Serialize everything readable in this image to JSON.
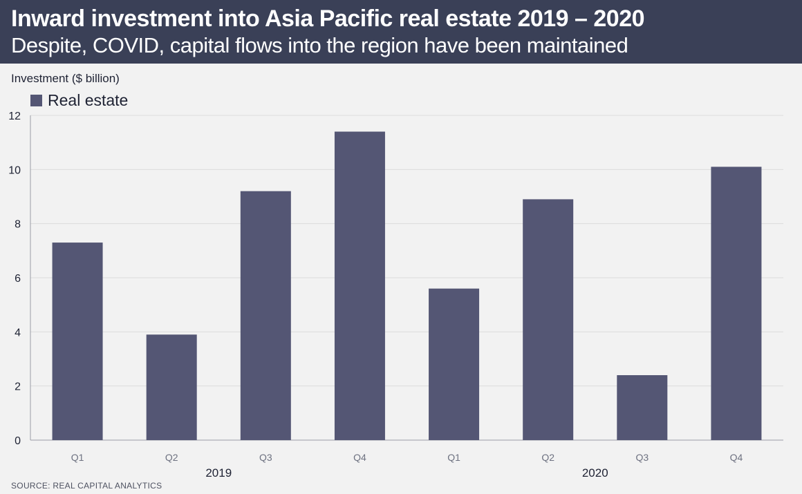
{
  "header": {
    "title": "Inward investment into Asia Pacific real estate 2019 – 2020",
    "subtitle": "Despite, COVID, capital flows into the region have been maintained"
  },
  "source": "SOURCE: REAL CAPITAL ANALYTICS",
  "chart_data": {
    "type": "bar",
    "title": "Inward investment into Asia Pacific real estate 2019 – 2020",
    "subtitle": "Despite, COVID, capital flows into the region have been maintained",
    "ylabel": "Investment ($ billion)",
    "xlabel": "",
    "ylim": [
      0,
      12
    ],
    "yticks": [
      0,
      2,
      4,
      6,
      8,
      10,
      12
    ],
    "grid": true,
    "legend": {
      "position": "top-left",
      "entries": [
        "Real estate"
      ]
    },
    "categories": [
      "Q1",
      "Q2",
      "Q3",
      "Q4",
      "Q1",
      "Q2",
      "Q3",
      "Q4"
    ],
    "groups": [
      {
        "label": "2019",
        "categories": [
          0,
          1,
          2,
          3
        ]
      },
      {
        "label": "2020",
        "categories": [
          4,
          5,
          6,
          7
        ]
      }
    ],
    "series": [
      {
        "name": "Real estate",
        "color": "#545674",
        "values": [
          7.3,
          3.9,
          9.2,
          11.4,
          5.6,
          8.9,
          2.4,
          10.1
        ]
      }
    ]
  }
}
